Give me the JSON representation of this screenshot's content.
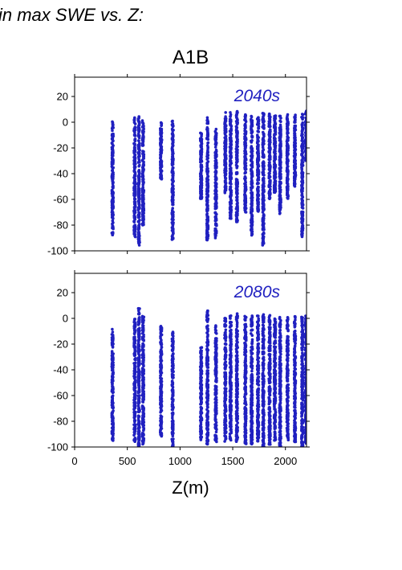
{
  "figure": {
    "title_fragment": "in max SWE vs. Z:",
    "scenario": "A1B"
  },
  "chart_data": [
    {
      "type": "scatter",
      "title": "2040s",
      "xlabel": "",
      "ylabel": "",
      "xlim": [
        0,
        2200
      ],
      "ylim": [
        -100,
        35
      ],
      "xticks": [
        0,
        500,
        1000,
        1500,
        2000
      ],
      "yticks": [
        20,
        0,
        -20,
        -40,
        -60,
        -80,
        -100
      ],
      "x_ticklabels_shown": false,
      "marker_color": "#2020c0",
      "note": "dense vertical clusters of points at elevation bands; each band spans ~[min,max] of y",
      "bands": [
        {
          "x": 360,
          "ymin": -88,
          "ymax": 2
        },
        {
          "x": 570,
          "ymin": -90,
          "ymax": 4
        },
        {
          "x": 610,
          "ymin": -96,
          "ymax": 5
        },
        {
          "x": 650,
          "ymin": -80,
          "ymax": 2
        },
        {
          "x": 820,
          "ymin": -45,
          "ymax": 2
        },
        {
          "x": 930,
          "ymin": -92,
          "ymax": 1
        },
        {
          "x": 1200,
          "ymin": -60,
          "ymax": -8
        },
        {
          "x": 1260,
          "ymin": -92,
          "ymax": 5
        },
        {
          "x": 1340,
          "ymin": -90,
          "ymax": -5
        },
        {
          "x": 1430,
          "ymin": -55,
          "ymax": 8
        },
        {
          "x": 1480,
          "ymin": -75,
          "ymax": 8
        },
        {
          "x": 1540,
          "ymin": -78,
          "ymax": 9
        },
        {
          "x": 1620,
          "ymin": -70,
          "ymax": 6
        },
        {
          "x": 1680,
          "ymin": -88,
          "ymax": 6
        },
        {
          "x": 1740,
          "ymin": -70,
          "ymax": 5
        },
        {
          "x": 1790,
          "ymin": -96,
          "ymax": 8
        },
        {
          "x": 1850,
          "ymin": -60,
          "ymax": 7
        },
        {
          "x": 1900,
          "ymin": -55,
          "ymax": 6
        },
        {
          "x": 1950,
          "ymin": -72,
          "ymax": 7
        },
        {
          "x": 2020,
          "ymin": -60,
          "ymax": 6
        },
        {
          "x": 2090,
          "ymin": -50,
          "ymax": 6
        },
        {
          "x": 2160,
          "ymin": -90,
          "ymax": 7
        },
        {
          "x": 2195,
          "ymin": -30,
          "ymax": 9
        }
      ]
    },
    {
      "type": "scatter",
      "title": "2080s",
      "xlabel": "Z(m)",
      "ylabel": "",
      "xlim": [
        0,
        2200
      ],
      "ylim": [
        -100,
        35
      ],
      "xticks": [
        0,
        500,
        1000,
        1500,
        2000
      ],
      "yticks": [
        20,
        0,
        -20,
        -40,
        -60,
        -80,
        -100
      ],
      "x_ticklabels_shown": true,
      "marker_color": "#2020c0",
      "bands": [
        {
          "x": 360,
          "ymin": -95,
          "ymax": -8
        },
        {
          "x": 570,
          "ymin": -96,
          "ymax": 0
        },
        {
          "x": 610,
          "ymin": -100,
          "ymax": 8
        },
        {
          "x": 650,
          "ymin": -98,
          "ymax": 2
        },
        {
          "x": 820,
          "ymin": -92,
          "ymax": -5
        },
        {
          "x": 930,
          "ymin": -100,
          "ymax": -10
        },
        {
          "x": 1200,
          "ymin": -95,
          "ymax": -20
        },
        {
          "x": 1260,
          "ymin": -98,
          "ymax": 6
        },
        {
          "x": 1340,
          "ymin": -96,
          "ymax": -5
        },
        {
          "x": 1430,
          "ymin": -96,
          "ymax": 2
        },
        {
          "x": 1480,
          "ymin": -95,
          "ymax": 2
        },
        {
          "x": 1540,
          "ymin": -96,
          "ymax": 4
        },
        {
          "x": 1620,
          "ymin": -98,
          "ymax": 2
        },
        {
          "x": 1680,
          "ymin": -98,
          "ymax": 2
        },
        {
          "x": 1740,
          "ymin": -96,
          "ymax": 2
        },
        {
          "x": 1790,
          "ymin": -100,
          "ymax": 4
        },
        {
          "x": 1850,
          "ymin": -98,
          "ymax": 3
        },
        {
          "x": 1900,
          "ymin": -96,
          "ymax": 3
        },
        {
          "x": 1950,
          "ymin": -100,
          "ymax": 3
        },
        {
          "x": 2020,
          "ymin": -95,
          "ymax": 2
        },
        {
          "x": 2090,
          "ymin": -96,
          "ymax": 3
        },
        {
          "x": 2160,
          "ymin": -100,
          "ymax": 3
        },
        {
          "x": 2195,
          "ymin": -98,
          "ymax": 2
        }
      ]
    }
  ]
}
